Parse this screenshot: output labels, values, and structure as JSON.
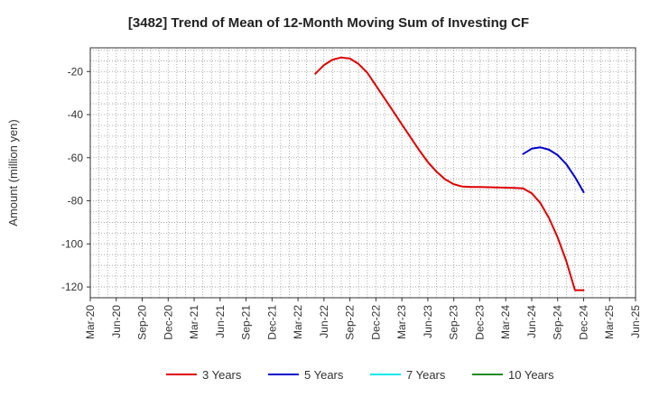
{
  "chart_data": {
    "type": "line",
    "title": "[3482]  Trend of Mean of 12-Month Moving Sum of Investing CF",
    "ylabel": "Amount (million yen)",
    "xlabel": "",
    "ylim": [
      -125,
      -9
    ],
    "yticks": [
      -20,
      -40,
      -60,
      -80,
      -100,
      -120
    ],
    "x_tick_labels": [
      "Mar-20",
      "Jun-20",
      "Sep-20",
      "Dec-20",
      "Mar-21",
      "Jun-21",
      "Sep-21",
      "Dec-21",
      "Mar-22",
      "Jun-22",
      "Sep-22",
      "Dec-22",
      "Mar-23",
      "Jun-23",
      "Sep-23",
      "Dec-23",
      "Mar-24",
      "Jun-24",
      "Sep-24",
      "Dec-24",
      "Mar-25",
      "Jun-25"
    ],
    "x_range": [
      "2020-03",
      "2025-06"
    ],
    "grid": true,
    "legend_position": "bottom",
    "series": [
      {
        "name": "3 Years",
        "color": "#dd0000",
        "x": [
          "2022-05",
          "2022-06",
          "2022-07",
          "2022-08",
          "2022-09",
          "2022-10",
          "2022-11",
          "2022-12",
          "2023-01",
          "2023-02",
          "2023-03",
          "2023-04",
          "2023-05",
          "2023-06",
          "2023-07",
          "2023-08",
          "2023-09",
          "2023-10",
          "2023-11",
          "2023-12",
          "2024-01",
          "2024-02",
          "2024-03",
          "2024-04",
          "2024-05",
          "2024-06",
          "2024-07",
          "2024-08",
          "2024-09",
          "2024-10",
          "2024-11",
          "2024-12"
        ],
        "y": [
          -21,
          -17,
          -14.5,
          -13.5,
          -14,
          -16.5,
          -20.5,
          -26.5,
          -32.5,
          -38.5,
          -44.5,
          -50.5,
          -56.5,
          -62,
          -66.5,
          -70,
          -72.3,
          -73.4,
          -73.6,
          -73.6,
          -73.7,
          -73.8,
          -73.9,
          -74.0,
          -74.2,
          -76.5,
          -81,
          -88,
          -97,
          -108,
          -121.5,
          -121.5
        ],
        "x_end_note": ""
      },
      {
        "name": "5 Years",
        "color": "#0000cc",
        "x": [
          "2024-05",
          "2024-06",
          "2024-07",
          "2024-08",
          "2024-09",
          "2024-10",
          "2024-11",
          "2024-12"
        ],
        "y": [
          -58.3,
          -55.8,
          -55.2,
          -56.3,
          -58.8,
          -63,
          -69,
          -76
        ]
      },
      {
        "name": "7 Years",
        "color": "#00e5ee",
        "x": [],
        "y": []
      },
      {
        "name": "10 Years",
        "color": "#228b22",
        "x": [],
        "y": []
      }
    ]
  }
}
